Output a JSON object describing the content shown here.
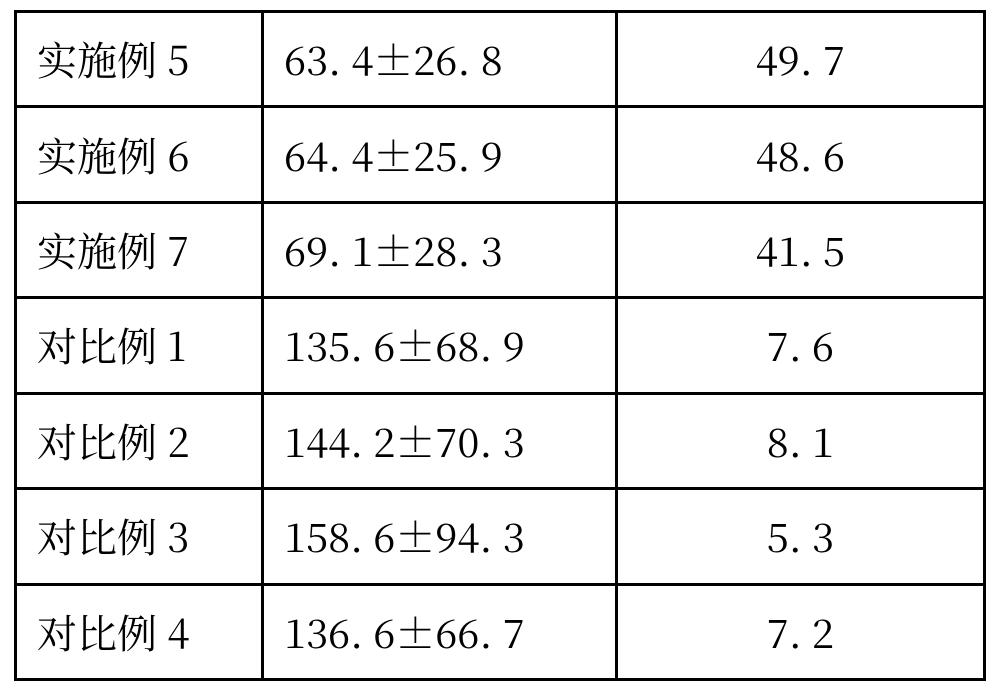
{
  "table": {
    "type": "table",
    "border_color": "#000000",
    "background_color": "#ffffff",
    "text_color": "#000000",
    "font_size_pt": 30,
    "column_widths_pct": [
      25.5,
      36.5,
      38.0
    ],
    "column_alignment": [
      "left",
      "left",
      "center"
    ],
    "rows": [
      {
        "label": "实施例 5",
        "value": "63. 4±26. 8",
        "pct": "49. 7"
      },
      {
        "label": "实施例 6",
        "value": "64. 4±25. 9",
        "pct": "48. 6"
      },
      {
        "label": "实施例 7",
        "value": "69. 1±28. 3",
        "pct": "41. 5"
      },
      {
        "label": "对比例 1",
        "value": "135. 6±68. 9",
        "pct": "7. 6"
      },
      {
        "label": "对比例 2",
        "value": "144. 2±70. 3",
        "pct": "8. 1"
      },
      {
        "label": "对比例 3",
        "value": "158. 6±94. 3",
        "pct": "5. 3"
      },
      {
        "label": "对比例 4",
        "value": "136. 6±66. 7",
        "pct": "7. 2"
      }
    ]
  }
}
